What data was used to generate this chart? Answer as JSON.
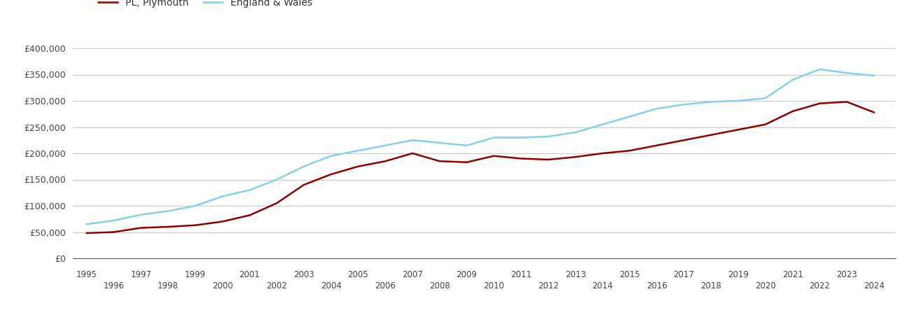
{
  "years": [
    1995,
    1996,
    1997,
    1998,
    1999,
    2000,
    2001,
    2002,
    2003,
    2004,
    2005,
    2006,
    2007,
    2008,
    2009,
    2010,
    2011,
    2012,
    2013,
    2014,
    2015,
    2016,
    2017,
    2018,
    2019,
    2020,
    2021,
    2022,
    2023,
    2024
  ],
  "plymouth": [
    48000,
    50000,
    58000,
    60000,
    63000,
    70000,
    82000,
    105000,
    140000,
    160000,
    175000,
    185000,
    200000,
    185000,
    183000,
    195000,
    190000,
    188000,
    193000,
    200000,
    205000,
    215000,
    225000,
    235000,
    245000,
    255000,
    280000,
    295000,
    298000,
    278000
  ],
  "england_wales": [
    65000,
    72000,
    83000,
    90000,
    100000,
    118000,
    130000,
    150000,
    175000,
    195000,
    205000,
    215000,
    225000,
    220000,
    215000,
    230000,
    230000,
    232000,
    240000,
    255000,
    270000,
    285000,
    293000,
    298000,
    300000,
    305000,
    340000,
    360000,
    353000,
    348000
  ],
  "pl_color": "#8B0000",
  "ew_color": "#87CEEB",
  "background_color": "#ffffff",
  "grid_color": "#cccccc",
  "ylim": [
    0,
    420000
  ],
  "yticks": [
    0,
    50000,
    100000,
    150000,
    200000,
    250000,
    300000,
    350000,
    400000
  ],
  "legend_labels": [
    "PL, Plymouth",
    "England & Wales"
  ],
  "pl_linewidth": 1.8,
  "ew_linewidth": 1.8,
  "xlim_left": 1994.5,
  "xlim_right": 2024.8
}
